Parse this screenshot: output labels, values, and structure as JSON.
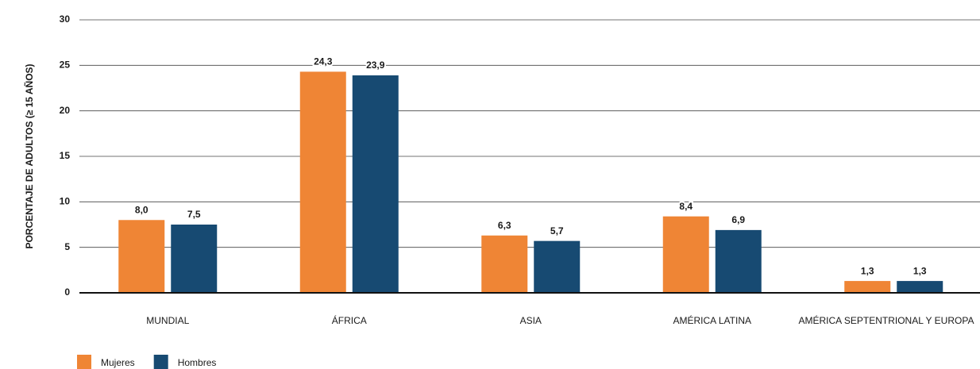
{
  "chart_data": {
    "type": "bar",
    "y_label": "PORCENTAJE DE ADULTOS (≥ 15 AÑOS)",
    "categories": [
      "MUNDIAL",
      "ÁFRICA",
      "ASIA",
      "AMÉRICA LATINA",
      "AMÉRICA SEPTENTRIONAL Y EUROPA"
    ],
    "series": [
      {
        "name": "Mujeres",
        "color": "#ef8535",
        "values": [
          8.0,
          24.3,
          6.3,
          8.4,
          1.3
        ],
        "value_labels": [
          "8,0",
          "24,3",
          "6,3",
          "8,4",
          "1,3"
        ]
      },
      {
        "name": "Hombres",
        "color": "#174a72",
        "values": [
          7.5,
          23.9,
          5.7,
          6.9,
          1.3
        ],
        "value_labels": [
          "7,5",
          "23,9",
          "5,7",
          "6,9",
          "1,3"
        ]
      }
    ],
    "ylim": [
      0,
      30
    ],
    "yticks": [
      0,
      5,
      10,
      15,
      20,
      25,
      30
    ],
    "grid": true,
    "legend": "bottom-left"
  }
}
